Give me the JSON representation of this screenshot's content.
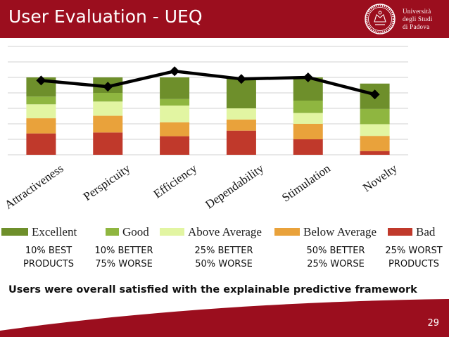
{
  "slide": {
    "title": "User Evaluation - UEQ",
    "university": [
      "Università",
      "degli Studi",
      "di Padova"
    ],
    "conclusion": "Users were overall satisfied with the explainable predictive framework",
    "page_number": "29"
  },
  "colors": {
    "header": "#9b0e1e",
    "excellent": "#6e8f2b",
    "good": "#8fb640",
    "above_average": "#e2f5a2",
    "below_average": "#e9a23b",
    "bad": "#c0392b",
    "mean_line": "#000000"
  },
  "legend": [
    {
      "key": "excellent",
      "label": "Excellent"
    },
    {
      "key": "good",
      "label": "Good"
    },
    {
      "key": "above_average",
      "label": "Above Average"
    },
    {
      "key": "below_average",
      "label": "Below Average"
    },
    {
      "key": "bad",
      "label": "Bad"
    }
  ],
  "benchmarks": [
    [
      "10% BEST",
      "PRODUCTS"
    ],
    [
      "10% BETTER",
      "75% WORSE"
    ],
    [
      "25% BETTER",
      "50% WORSE"
    ],
    [
      "50% BETTER",
      "25% WORSE"
    ],
    [
      "25% WORST",
      "PRODUCTS"
    ]
  ],
  "chart_data": {
    "type": "bar",
    "stacked": true,
    "categories": [
      "Attractiveness",
      "Perspicuity",
      "Efficiency",
      "Dependability",
      "Stimulation",
      "Novelty"
    ],
    "ylim": [
      -1,
      2.5
    ],
    "grid": true,
    "series": [
      {
        "name": "Bad",
        "key": "bad",
        "values": [
          0.69,
          0.72,
          0.6,
          0.78,
          0.5,
          0.12
        ]
      },
      {
        "name": "Below Average",
        "key": "below_average",
        "values": [
          0.49,
          0.54,
          0.45,
          0.36,
          0.5,
          0.49
        ]
      },
      {
        "name": "Above Average",
        "key": "above_average",
        "values": [
          0.45,
          0.46,
          0.54,
          0.36,
          0.35,
          0.38
        ]
      },
      {
        "name": "Good",
        "key": "good",
        "values": [
          0.25,
          0.28,
          0.21,
          0.0,
          0.4,
          0.49
        ]
      },
      {
        "name": "Excellent",
        "key": "excellent",
        "values": [
          0.62,
          0.5,
          0.7,
          1.0,
          0.75,
          0.82
        ]
      }
    ],
    "mean_line": {
      "values": [
        1.4,
        1.2,
        1.7,
        1.45,
        1.5,
        0.95
      ]
    }
  }
}
